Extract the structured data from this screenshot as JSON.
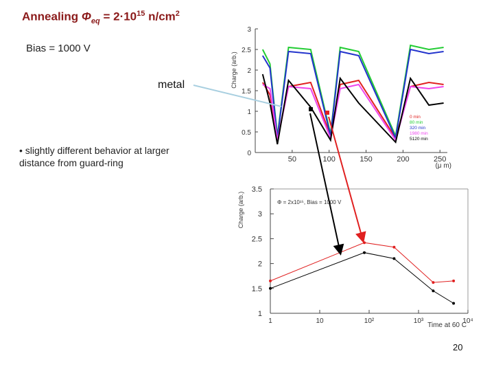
{
  "slide": {
    "title_parts": [
      "Annealing ",
      "Φ",
      "eq",
      " = 2·10",
      "15",
      " n/cm",
      "2"
    ],
    "bias": "Bias = 1000 V",
    "metal_label": "metal",
    "bullet": "• slightly different behavior at larger distance from guard-ring",
    "page_number": "20"
  },
  "colors": {
    "title": "#8b1a1a",
    "annotation_line": "#a8cfe0",
    "marker_black": "#000000",
    "marker_red": "#e02020"
  },
  "chart_data": [
    {
      "type": "line",
      "title": "",
      "xlabel": "(μ m)",
      "ylabel": "Charge (arb.)",
      "xlim": [
        0,
        260
      ],
      "ylim": [
        0,
        3
      ],
      "xticks": [
        "50",
        "100",
        "150",
        "200",
        "250"
      ],
      "yticks": [
        "0",
        "0.5",
        "1",
        "1.5",
        "2",
        "2.5",
        "3"
      ],
      "legend_position": "bottom-right",
      "series": [
        {
          "name": "0 min",
          "color": "#e02020",
          "values": [
            1.7,
            1.4,
            0.3,
            1.6,
            1.7,
            0.4,
            1.65,
            1.75,
            0.35,
            1.6,
            1.7,
            1.65
          ]
        },
        {
          "name": "80 min",
          "color": "#22cc33",
          "values": [
            2.5,
            2.15,
            0.4,
            2.55,
            2.5,
            0.45,
            2.55,
            2.45,
            0.4,
            2.6,
            2.5,
            2.55
          ]
        },
        {
          "name": "320 min",
          "color": "#2233cc",
          "values": [
            2.35,
            2.05,
            0.35,
            2.45,
            2.4,
            0.4,
            2.45,
            2.35,
            0.35,
            2.5,
            2.4,
            2.45
          ]
        },
        {
          "name": "1980 min",
          "color": "#ee44ee",
          "values": [
            1.65,
            1.55,
            0.3,
            1.6,
            1.55,
            0.35,
            1.55,
            1.65,
            0.3,
            1.6,
            1.55,
            1.6
          ]
        },
        {
          "name": "5120 min",
          "color": "#000000",
          "values": [
            1.9,
            1.2,
            0.2,
            1.75,
            1.1,
            0.3,
            1.8,
            1.2,
            0.25,
            1.8,
            1.15,
            1.2
          ]
        }
      ],
      "x": [
        10,
        20,
        30,
        45,
        75,
        102,
        115,
        140,
        190,
        210,
        235,
        255
      ]
    },
    {
      "type": "line",
      "title": "",
      "xlabel": "Time at 60 C",
      "ylabel": "Charge (arb.)",
      "annotation": "Φ = 2x10¹⁵, Bias = 1000 V",
      "xscale": "log",
      "xlim": [
        1,
        10000
      ],
      "ylim": [
        1,
        3.5
      ],
      "xticks": [
        "1",
        "10",
        "10²",
        "10³",
        "10⁴"
      ],
      "yticks": [
        "1",
        "1.5",
        "2",
        "2.5",
        "3",
        "3.5"
      ],
      "series": [
        {
          "name": "red",
          "color": "#e02020",
          "x": [
            1,
            80,
            320,
            1980,
            5120
          ],
          "values": [
            1.65,
            2.42,
            2.33,
            1.62,
            1.65
          ]
        },
        {
          "name": "black",
          "color": "#000000",
          "x": [
            1,
            80,
            320,
            1980,
            5120
          ],
          "values": [
            1.5,
            2.22,
            2.1,
            1.45,
            1.2
          ]
        }
      ]
    }
  ]
}
